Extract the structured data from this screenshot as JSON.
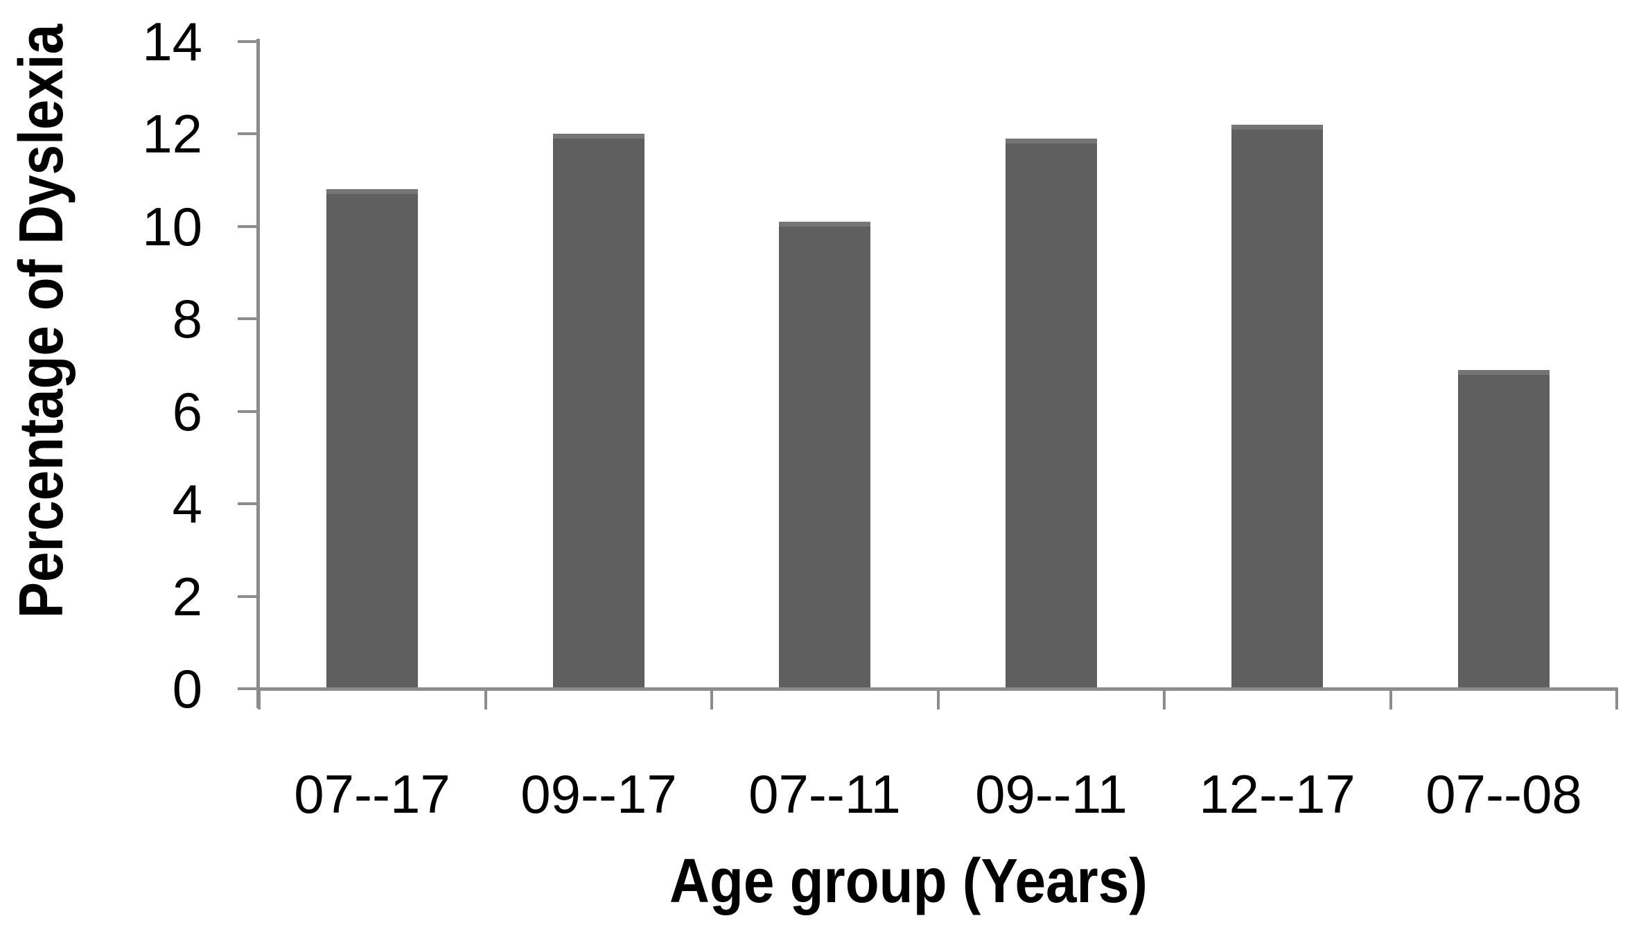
{
  "chart_data": {
    "type": "bar",
    "title": "",
    "categories": [
      "07--17",
      "09--17",
      "07--11",
      "09--11",
      "12--17",
      "07--08"
    ],
    "values": [
      10.8,
      12.0,
      10.1,
      11.9,
      12.2,
      6.9
    ],
    "xlabel": "Age group (Years)",
    "ylabel": "Percentage of Dyslexia",
    "ylim": [
      0,
      14
    ],
    "yticks": [
      0,
      2,
      4,
      6,
      8,
      10,
      12,
      14
    ],
    "grid": false,
    "legend": false,
    "bar_color": "#5f5f5f",
    "bar_top_edge_color": "#757575",
    "axis_color": "#8c8c8c",
    "text_color": "#000000",
    "background_color": "#ffffff"
  }
}
